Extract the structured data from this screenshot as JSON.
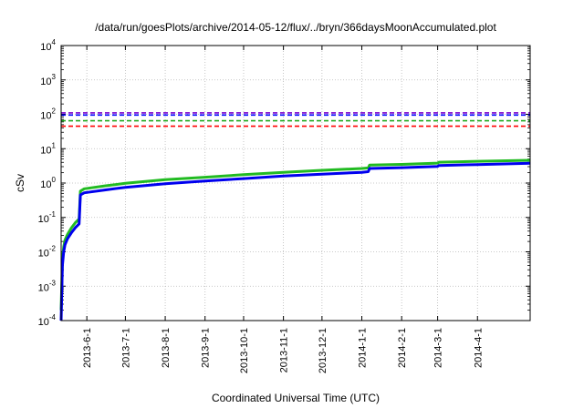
{
  "chart_data": {
    "type": "line",
    "title": "/data/run/goesPlots/archive/2014-05-12/flux/../bryn/366daysMoonAccumulated.plot",
    "xlabel": "Coordinated Universal Time (UTC)",
    "ylabel": "cSv",
    "yscale": "log",
    "ylim": [
      0.0001,
      10000
    ],
    "xlim": [
      "2013-05-12",
      "2014-05-12"
    ],
    "grid": true,
    "y_ticks": [
      {
        "base": "10",
        "exp": "-4",
        "value": 0.0001
      },
      {
        "base": "10",
        "exp": "-3",
        "value": 0.001
      },
      {
        "base": "10",
        "exp": "-2",
        "value": 0.01
      },
      {
        "base": "10",
        "exp": "-1",
        "value": 0.1
      },
      {
        "base": "10",
        "exp": "0",
        "value": 1
      },
      {
        "base": "10",
        "exp": "1",
        "value": 10
      },
      {
        "base": "10",
        "exp": "2",
        "value": 100
      },
      {
        "base": "10",
        "exp": "3",
        "value": 1000
      },
      {
        "base": "10",
        "exp": "4",
        "value": 10000
      }
    ],
    "x_ticks": [
      "2013-6-1",
      "2013-7-1",
      "2013-8-1",
      "2013-9-1",
      "2013-10-1",
      "2013-11-1",
      "2013-12-1",
      "2014-1-1",
      "2014-2-1",
      "2014-3-1",
      "2014-4-1"
    ],
    "x_tick_dates": [
      "2013-06-01",
      "2013-07-01",
      "2013-08-01",
      "2013-09-01",
      "2013-10-01",
      "2013-11-01",
      "2013-12-01",
      "2014-01-01",
      "2014-02-01",
      "2014-03-01",
      "2014-04-01"
    ],
    "thresholds": [
      {
        "color": "#7a00cc",
        "value": 110
      },
      {
        "color": "#0000ff",
        "value": 95
      },
      {
        "color": "#22aa22",
        "value": 65
      },
      {
        "color": "#ff0000",
        "value": 45
      }
    ],
    "series": [
      {
        "color": "#22bb22",
        "x": [
          "2013-05-12",
          "2013-05-13",
          "2013-05-14",
          "2013-05-15",
          "2013-05-17",
          "2013-05-20",
          "2013-05-23",
          "2013-05-26",
          "2013-05-27",
          "2013-05-30",
          "2013-06-15",
          "2013-07-01",
          "2013-08-01",
          "2013-09-01",
          "2013-10-01",
          "2013-11-01",
          "2013-12-01",
          "2014-01-01",
          "2014-01-06",
          "2014-01-07",
          "2014-02-01",
          "2014-03-01",
          "2014-03-02",
          "2014-04-01",
          "2014-05-12"
        ],
        "y": [
          0.0002,
          0.006,
          0.014,
          0.022,
          0.032,
          0.05,
          0.07,
          0.09,
          0.58,
          0.68,
          0.83,
          0.98,
          1.25,
          1.48,
          1.75,
          2.05,
          2.35,
          2.65,
          2.75,
          3.35,
          3.5,
          3.8,
          4.05,
          4.3,
          4.6
        ]
      },
      {
        "color": "#0000ee",
        "x": [
          "2013-05-12",
          "2013-05-13",
          "2013-05-14",
          "2013-05-15",
          "2013-05-17",
          "2013-05-20",
          "2013-05-23",
          "2013-05-26",
          "2013-05-27",
          "2013-05-30",
          "2013-06-15",
          "2013-07-01",
          "2013-08-01",
          "2013-09-01",
          "2013-10-01",
          "2013-11-01",
          "2013-12-01",
          "2014-01-01",
          "2014-01-06",
          "2014-01-07",
          "2014-02-01",
          "2014-03-01",
          "2014-03-02",
          "2014-04-01",
          "2014-05-12"
        ],
        "y": [
          0.0001,
          0.004,
          0.01,
          0.016,
          0.024,
          0.036,
          0.05,
          0.065,
          0.45,
          0.52,
          0.63,
          0.75,
          0.95,
          1.15,
          1.35,
          1.6,
          1.82,
          2.05,
          2.15,
          2.65,
          2.8,
          3.05,
          3.25,
          3.45,
          3.75
        ]
      }
    ]
  }
}
